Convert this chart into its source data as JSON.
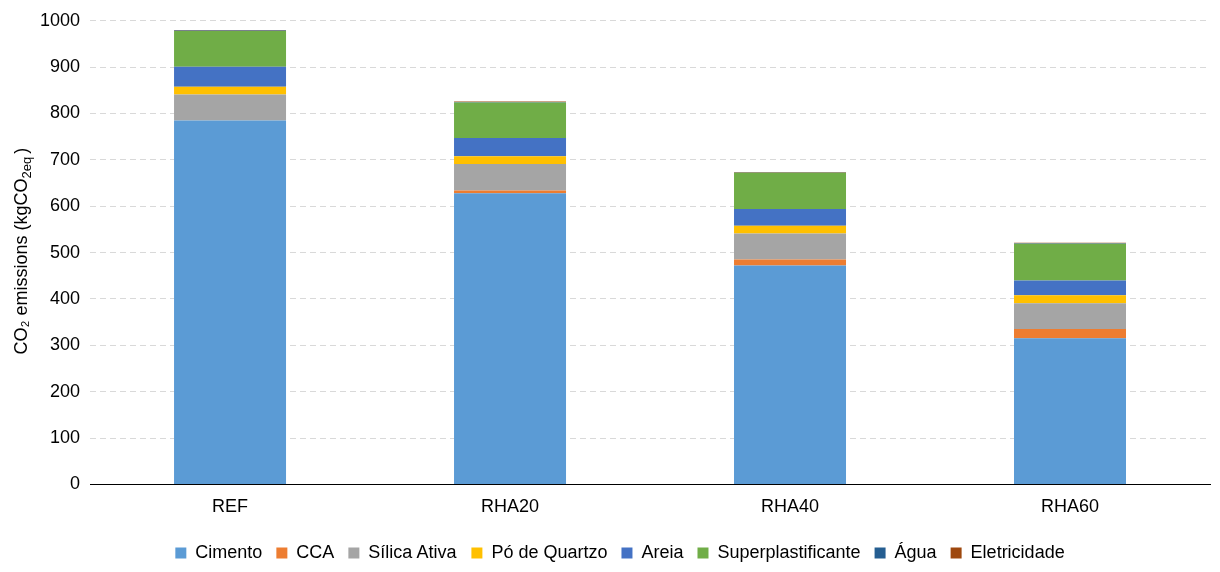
{
  "chart_data": {
    "type": "bar",
    "stacked": true,
    "ylabel": "CO₂ emissions (kgCO$_{2eq}$)",
    "categories": [
      "REF",
      "RHA20",
      "RHA40",
      "RHA60"
    ],
    "series": [
      {
        "name": "Cimento",
        "color": "#5b9bd5",
        "values": [
          785,
          628,
          472,
          315
        ]
      },
      {
        "name": "CCA",
        "color": "#ed7d31",
        "values": [
          0,
          6,
          13,
          20
        ]
      },
      {
        "name": "Sílica Ativa",
        "color": "#a5a5a5",
        "values": [
          56,
          57,
          56,
          56
        ]
      },
      {
        "name": "Pó de Quartzo",
        "color": "#ffc000",
        "values": [
          17,
          17,
          17,
          17
        ]
      },
      {
        "name": "Areia",
        "color": "#4472c4",
        "values": [
          43,
          39,
          36,
          32
        ]
      },
      {
        "name": "Superplastificante",
        "color": "#70ad47",
        "values": [
          77,
          77,
          78,
          79
        ]
      },
      {
        "name": "Água",
        "color": "#255e91",
        "values": [
          1,
          1,
          1,
          1
        ]
      },
      {
        "name": "Eletricidade",
        "color": "#9e480e",
        "values": [
          1,
          1,
          1,
          1
        ]
      }
    ],
    "ylim": [
      0,
      1000
    ],
    "yticks": [
      0,
      100,
      200,
      300,
      400,
      500,
      600,
      700,
      800,
      900,
      1000
    ],
    "grid": "y",
    "legend": "bottom"
  }
}
